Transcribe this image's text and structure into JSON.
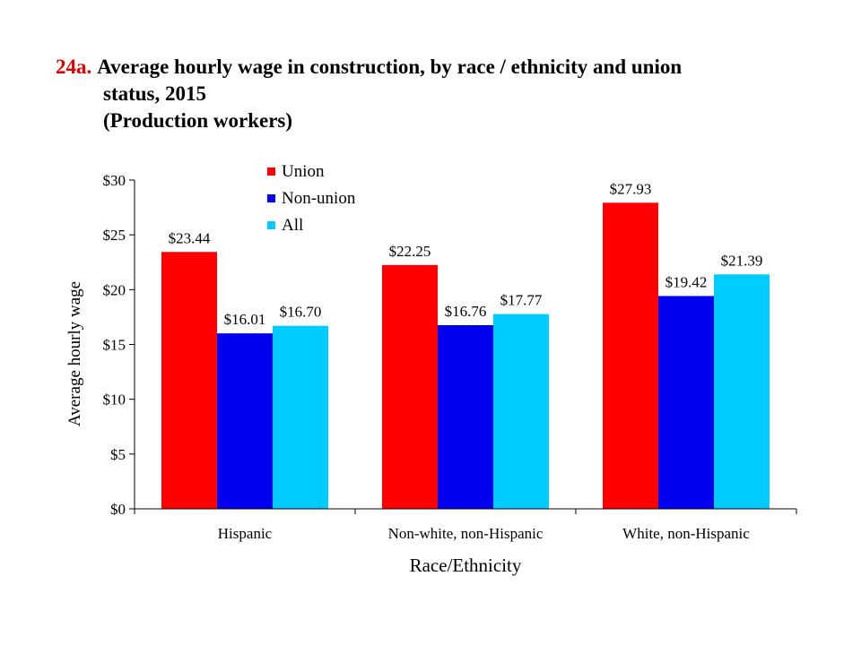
{
  "title": {
    "number": "24a.",
    "line1": "Average hourly wage in construction, by race / ethnicity and union",
    "line2": "status, 2015",
    "line3": "(Production workers)"
  },
  "chart_data": {
    "type": "bar",
    "categories": [
      "Hispanic",
      "Non-white, non-Hispanic",
      "White, non-Hispanic"
    ],
    "series": [
      {
        "name": "Union",
        "color": "#ff0000",
        "values": [
          23.44,
          22.25,
          27.93
        ],
        "labels": [
          "$23.44",
          "$22.25",
          "$27.93"
        ]
      },
      {
        "name": "Non-union",
        "color": "#0000ee",
        "values": [
          16.01,
          16.76,
          19.42
        ],
        "labels": [
          "$16.01",
          "$16.76",
          "$19.42"
        ]
      },
      {
        "name": "All",
        "color": "#00ccff",
        "values": [
          16.7,
          17.77,
          21.39
        ],
        "labels": [
          "$16.70",
          "$17.77",
          "$21.39"
        ]
      }
    ],
    "ylim": [
      0,
      30
    ],
    "yticks": [
      0,
      5,
      10,
      15,
      20,
      25,
      30
    ],
    "ytick_labels": [
      "$0",
      "$5",
      "$10",
      "$15",
      "$20",
      "$25",
      "$30"
    ],
    "xlabel": "Race/Ethnicity",
    "ylabel": "Average hourly wage",
    "legend_position": "top-center",
    "grid": false
  }
}
